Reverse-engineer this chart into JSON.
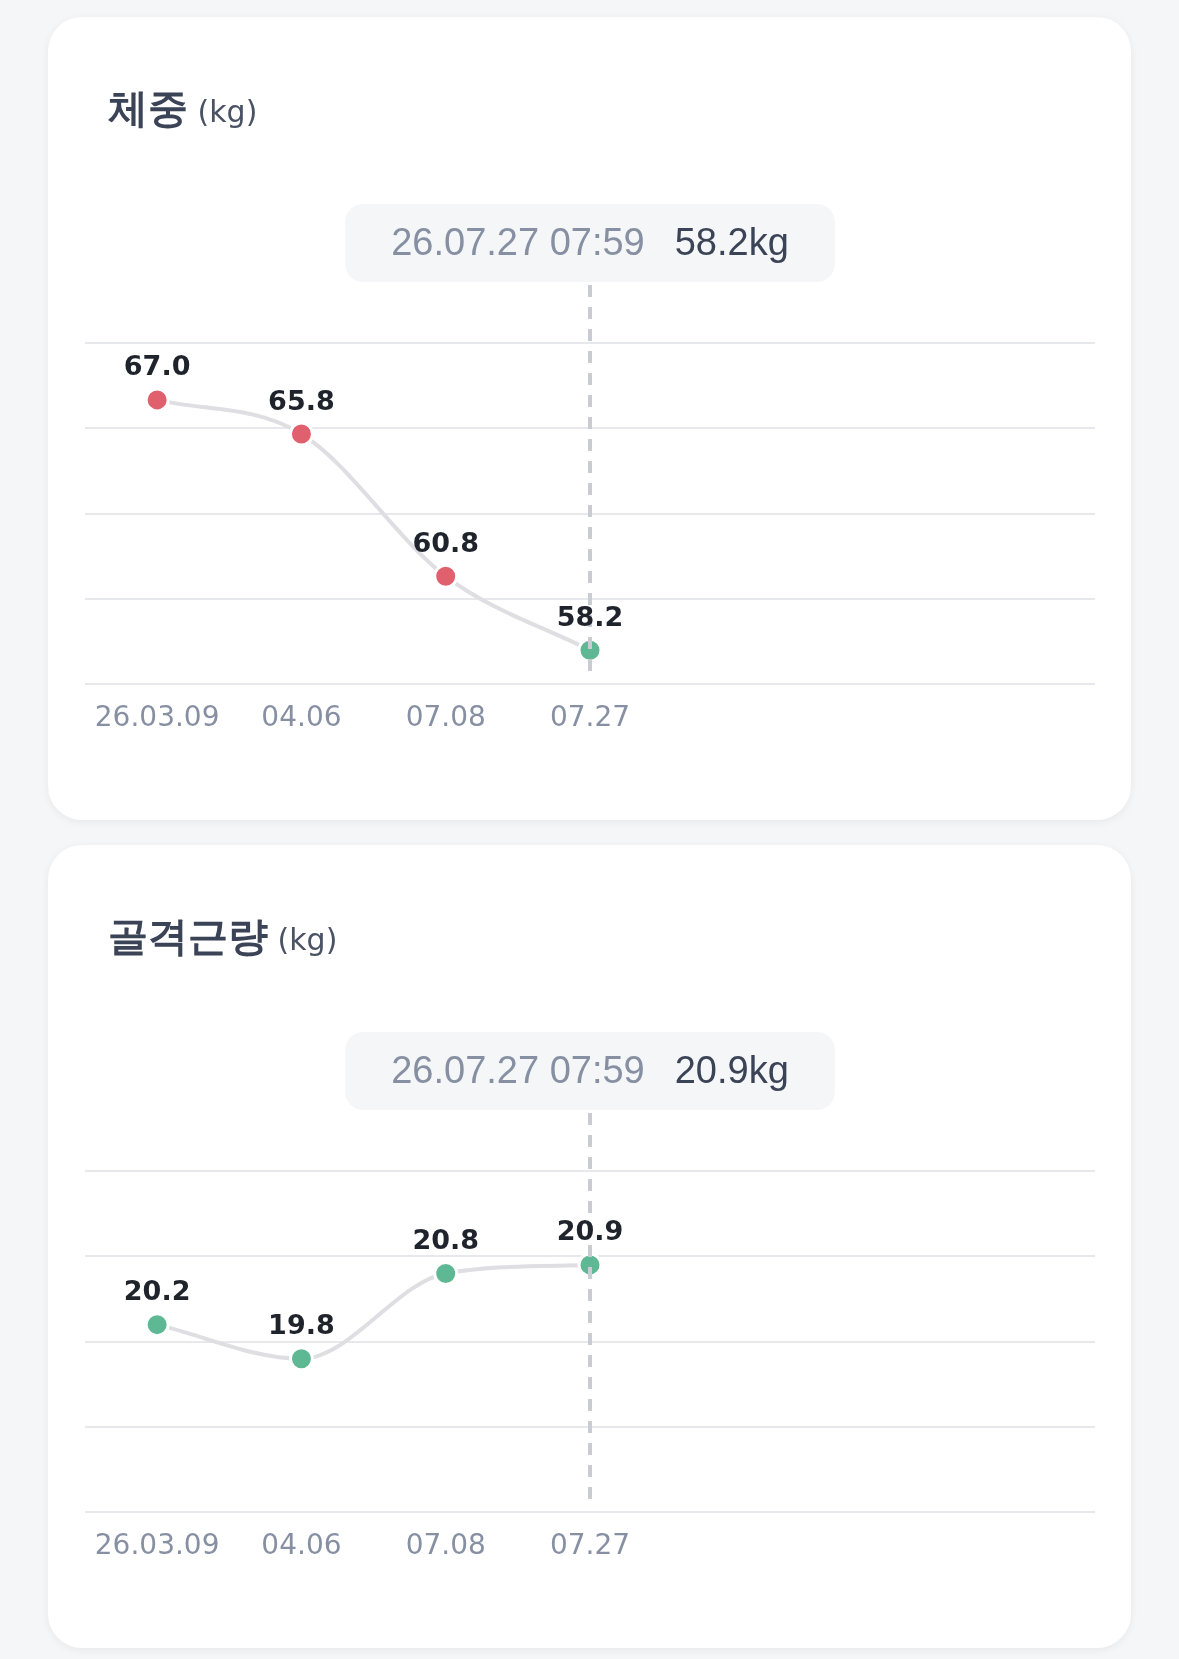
{
  "chart_data": [
    {
      "type": "line",
      "title": "체중",
      "subtitle": "(kg)",
      "categories": [
        "26.03.09",
        "04.06",
        "07.08",
        "07.27",
        null,
        null,
        null
      ],
      "series": [
        {
          "color": "#dedee3",
          "colors": [
            "#e0606e",
            "#e0606e",
            "#e0606e",
            "#5fb894",
            null,
            null,
            null
          ],
          "values": [
            67.0,
            65.8,
            60.8,
            58.2,
            null,
            null,
            null
          ],
          "value_labels": [
            "67.0",
            "65.8",
            "60.8",
            "58.2",
            null,
            null,
            null
          ]
        }
      ],
      "ylim": [
        57,
        69
      ],
      "yticks": [
        {
          "value": 57,
          "label": null
        },
        {
          "value": 60,
          "label": null
        },
        {
          "value": 63,
          "label": null
        },
        {
          "value": 66,
          "label": null
        },
        {
          "value": 69,
          "label": null
        }
      ],
      "grid": "y",
      "tick_labels": "x",
      "marker": "circle",
      "ref_lines": [
        {
          "axis": "x",
          "value": "07.27",
          "color": "#c9ccd2",
          "line_style": "dashed"
        }
      ],
      "annotations": [
        "26.07.27 07:59",
        "58.2kg"
      ]
    },
    {
      "type": "line",
      "title": "골격근량",
      "subtitle": "(kg)",
      "categories": [
        "26.03.09",
        "04.06",
        "07.08",
        "07.27",
        null,
        null,
        null
      ],
      "series": [
        {
          "color": "#dedee3",
          "colors": [
            "#5fb894",
            "#5fb894",
            "#5fb894",
            "#5fb894",
            null,
            null,
            null
          ],
          "values": [
            20.2,
            19.8,
            20.8,
            20.9,
            null,
            null,
            null
          ],
          "value_labels": [
            "20.2",
            "19.8",
            "20.8",
            "20.9",
            null,
            null,
            null
          ]
        }
      ],
      "ylim": [
        18,
        22
      ],
      "yticks": [
        {
          "value": 18,
          "label": null
        },
        {
          "value": 19,
          "label": null
        },
        {
          "value": 20,
          "label": null
        },
        {
          "value": 21,
          "label": null
        },
        {
          "value": 22,
          "label": null
        }
      ],
      "grid": "y",
      "tick_labels": "x",
      "marker": "circle",
      "ref_lines": [
        {
          "axis": "x",
          "value": "07.27",
          "color": "#c9ccd2",
          "line_style": "dashed"
        }
      ],
      "annotations": [
        "26.07.27 07:59",
        "20.9kg"
      ]
    }
  ]
}
